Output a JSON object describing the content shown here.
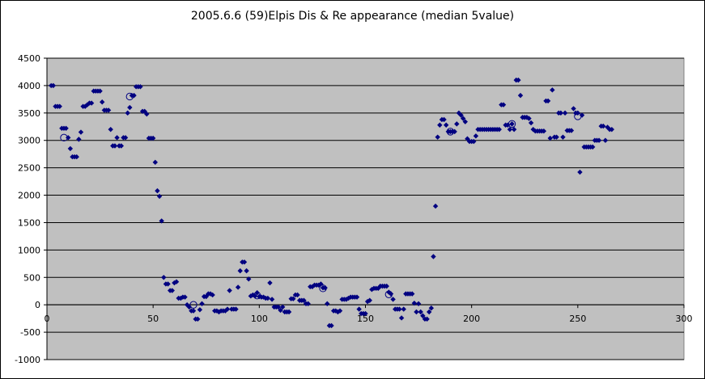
{
  "chart_data": {
    "type": "scatter",
    "title": "2005.6.6 (59)Elpis Dis & Re appearance (median 5value)",
    "xlabel": "",
    "ylabel": "",
    "xlim": [
      0,
      300
    ],
    "ylim": [
      -1000,
      4500
    ],
    "xticks": [
      0,
      50,
      100,
      150,
      200,
      250,
      300
    ],
    "yticks": [
      -1000,
      -500,
      0,
      500,
      1000,
      1500,
      2000,
      2500,
      3000,
      3500,
      4000,
      4500
    ],
    "grid": "horizontal",
    "legend": "none",
    "plot_background": "#c0c0c0",
    "series": [
      {
        "marker": "diamond",
        "color": "#000080",
        "points": [
          [
            2,
            4000
          ],
          [
            3,
            4000
          ],
          [
            4,
            3620
          ],
          [
            5,
            3620
          ],
          [
            6,
            3620
          ],
          [
            7,
            3220
          ],
          [
            8,
            3220
          ],
          [
            9,
            3220
          ],
          [
            10,
            3050
          ],
          [
            11,
            2850
          ],
          [
            12,
            2700
          ],
          [
            13,
            2700
          ],
          [
            14,
            2700
          ],
          [
            15,
            3020
          ],
          [
            16,
            3150
          ],
          [
            17,
            3620
          ],
          [
            18,
            3620
          ],
          [
            19,
            3650
          ],
          [
            20,
            3680
          ],
          [
            21,
            3680
          ],
          [
            22,
            3900
          ],
          [
            23,
            3900
          ],
          [
            24,
            3900
          ],
          [
            25,
            3900
          ],
          [
            26,
            3700
          ],
          [
            27,
            3550
          ],
          [
            28,
            3550
          ],
          [
            29,
            3550
          ],
          [
            30,
            3200
          ],
          [
            31,
            2900
          ],
          [
            32,
            2900
          ],
          [
            33,
            3050
          ],
          [
            34,
            2900
          ],
          [
            35,
            2900
          ],
          [
            36,
            3050
          ],
          [
            37,
            3050
          ],
          [
            38,
            3500
          ],
          [
            39,
            3600
          ],
          [
            40,
            3820
          ],
          [
            41,
            3820
          ],
          [
            42,
            3980
          ],
          [
            43,
            3980
          ],
          [
            44,
            3980
          ],
          [
            45,
            3530
          ],
          [
            46,
            3530
          ],
          [
            47,
            3480
          ],
          [
            48,
            3040
          ],
          [
            49,
            3040
          ],
          [
            50,
            3040
          ],
          [
            51,
            2600
          ],
          [
            52,
            2080
          ],
          [
            53,
            1980
          ],
          [
            54,
            1530
          ],
          [
            55,
            500
          ],
          [
            56,
            380
          ],
          [
            57,
            380
          ],
          [
            58,
            260
          ],
          [
            59,
            260
          ],
          [
            60,
            400
          ],
          [
            61,
            420
          ],
          [
            62,
            120
          ],
          [
            63,
            120
          ],
          [
            64,
            140
          ],
          [
            65,
            140
          ],
          [
            66,
            0
          ],
          [
            67,
            -40
          ],
          [
            68,
            -110
          ],
          [
            69,
            -110
          ],
          [
            70,
            -260
          ],
          [
            71,
            -260
          ],
          [
            72,
            -90
          ],
          [
            73,
            20
          ],
          [
            74,
            150
          ],
          [
            75,
            150
          ],
          [
            76,
            200
          ],
          [
            77,
            200
          ],
          [
            78,
            180
          ],
          [
            79,
            -110
          ],
          [
            80,
            -110
          ],
          [
            81,
            -130
          ],
          [
            82,
            -110
          ],
          [
            83,
            -110
          ],
          [
            84,
            -110
          ],
          [
            85,
            -80
          ],
          [
            86,
            260
          ],
          [
            87,
            -80
          ],
          [
            88,
            -80
          ],
          [
            89,
            -80
          ],
          [
            90,
            320
          ],
          [
            91,
            620
          ],
          [
            92,
            780
          ],
          [
            93,
            780
          ],
          [
            94,
            620
          ],
          [
            95,
            470
          ],
          [
            96,
            160
          ],
          [
            97,
            180
          ],
          [
            98,
            160
          ],
          [
            99,
            220
          ],
          [
            100,
            150
          ],
          [
            101,
            140
          ],
          [
            102,
            140
          ],
          [
            103,
            120
          ],
          [
            104,
            120
          ],
          [
            105,
            400
          ],
          [
            106,
            100
          ],
          [
            107,
            -40
          ],
          [
            108,
            -40
          ],
          [
            109,
            -40
          ],
          [
            110,
            -100
          ],
          [
            111,
            -40
          ],
          [
            112,
            -130
          ],
          [
            113,
            -130
          ],
          [
            114,
            -130
          ],
          [
            115,
            110
          ],
          [
            116,
            110
          ],
          [
            117,
            180
          ],
          [
            118,
            180
          ],
          [
            119,
            80
          ],
          [
            120,
            80
          ],
          [
            121,
            80
          ],
          [
            122,
            20
          ],
          [
            123,
            20
          ],
          [
            124,
            330
          ],
          [
            125,
            330
          ],
          [
            126,
            360
          ],
          [
            127,
            360
          ],
          [
            128,
            360
          ],
          [
            129,
            380
          ],
          [
            130,
            310
          ],
          [
            131,
            310
          ],
          [
            132,
            20
          ],
          [
            133,
            -380
          ],
          [
            134,
            -380
          ],
          [
            135,
            -110
          ],
          [
            136,
            -110
          ],
          [
            137,
            -130
          ],
          [
            138,
            -110
          ],
          [
            139,
            100
          ],
          [
            140,
            100
          ],
          [
            141,
            100
          ],
          [
            142,
            120
          ],
          [
            143,
            140
          ],
          [
            144,
            140
          ],
          [
            145,
            140
          ],
          [
            146,
            140
          ],
          [
            147,
            -80
          ],
          [
            148,
            -160
          ],
          [
            149,
            -160
          ],
          [
            150,
            -160
          ],
          [
            151,
            60
          ],
          [
            152,
            80
          ],
          [
            153,
            280
          ],
          [
            154,
            300
          ],
          [
            155,
            300
          ],
          [
            156,
            300
          ],
          [
            157,
            340
          ],
          [
            158,
            340
          ],
          [
            159,
            340
          ],
          [
            160,
            340
          ],
          [
            161,
            230
          ],
          [
            162,
            200
          ],
          [
            163,
            100
          ],
          [
            164,
            -80
          ],
          [
            165,
            -80
          ],
          [
            166,
            -80
          ],
          [
            167,
            -240
          ],
          [
            168,
            -80
          ],
          [
            169,
            200
          ],
          [
            170,
            200
          ],
          [
            171,
            200
          ],
          [
            172,
            200
          ],
          [
            173,
            30
          ],
          [
            174,
            -130
          ],
          [
            175,
            20
          ],
          [
            176,
            -130
          ],
          [
            177,
            -200
          ],
          [
            178,
            -260
          ],
          [
            179,
            -260
          ],
          [
            180,
            -130
          ],
          [
            181,
            -60
          ],
          [
            182,
            880
          ],
          [
            183,
            1800
          ],
          [
            184,
            3060
          ],
          [
            185,
            3280
          ],
          [
            186,
            3380
          ],
          [
            187,
            3380
          ],
          [
            188,
            3280
          ],
          [
            189,
            3160
          ],
          [
            190,
            3160
          ],
          [
            191,
            3160
          ],
          [
            192,
            3160
          ],
          [
            193,
            3300
          ],
          [
            194,
            3500
          ],
          [
            195,
            3460
          ],
          [
            196,
            3400
          ],
          [
            197,
            3340
          ],
          [
            198,
            3030
          ],
          [
            199,
            2980
          ],
          [
            200,
            2980
          ],
          [
            201,
            2980
          ],
          [
            202,
            3080
          ],
          [
            203,
            3200
          ],
          [
            204,
            3200
          ],
          [
            205,
            3200
          ],
          [
            206,
            3200
          ],
          [
            207,
            3200
          ],
          [
            208,
            3200
          ],
          [
            209,
            3200
          ],
          [
            210,
            3200
          ],
          [
            211,
            3200
          ],
          [
            212,
            3200
          ],
          [
            213,
            3200
          ],
          [
            214,
            3650
          ],
          [
            215,
            3650
          ],
          [
            216,
            3280
          ],
          [
            217,
            3280
          ],
          [
            218,
            3200
          ],
          [
            219,
            3300
          ],
          [
            220,
            3200
          ],
          [
            221,
            4100
          ],
          [
            222,
            4100
          ],
          [
            223,
            3820
          ],
          [
            224,
            3420
          ],
          [
            225,
            3420
          ],
          [
            226,
            3420
          ],
          [
            227,
            3400
          ],
          [
            228,
            3320
          ],
          [
            229,
            3200
          ],
          [
            230,
            3170
          ],
          [
            231,
            3170
          ],
          [
            232,
            3170
          ],
          [
            233,
            3170
          ],
          [
            234,
            3170
          ],
          [
            235,
            3720
          ],
          [
            236,
            3720
          ],
          [
            237,
            3040
          ],
          [
            238,
            3920
          ],
          [
            239,
            3060
          ],
          [
            240,
            3060
          ],
          [
            241,
            3500
          ],
          [
            242,
            3500
          ],
          [
            243,
            3060
          ],
          [
            244,
            3500
          ],
          [
            245,
            3180
          ],
          [
            246,
            3180
          ],
          [
            247,
            3180
          ],
          [
            248,
            3580
          ],
          [
            249,
            3500
          ],
          [
            250,
            3500
          ],
          [
            251,
            2420
          ],
          [
            252,
            3460
          ],
          [
            253,
            2880
          ],
          [
            254,
            2880
          ],
          [
            255,
            2880
          ],
          [
            256,
            2880
          ],
          [
            257,
            2880
          ],
          [
            258,
            3000
          ],
          [
            259,
            3000
          ],
          [
            260,
            3000
          ],
          [
            261,
            3260
          ],
          [
            262,
            3260
          ],
          [
            263,
            3000
          ],
          [
            264,
            3240
          ],
          [
            265,
            3200
          ],
          [
            266,
            3200
          ]
        ]
      },
      {
        "marker": "open-circle",
        "color": "#000080",
        "points": [
          [
            8,
            3050
          ],
          [
            39,
            3800
          ],
          [
            69,
            0
          ],
          [
            99,
            170
          ],
          [
            130,
            300
          ],
          [
            161,
            190
          ],
          [
            190,
            3160
          ],
          [
            219,
            3300
          ],
          [
            250,
            3440
          ]
        ]
      }
    ]
  }
}
